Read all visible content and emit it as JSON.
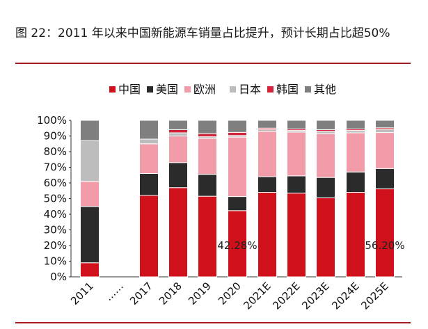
{
  "header": {
    "title": "图 22：2011 年以来中国新能源车销量占比提升，预计长期占比超50%"
  },
  "chart_data": {
    "type": "bar",
    "stacked": true,
    "categories": [
      "2011",
      "……",
      "2017",
      "2018",
      "2019",
      "2020",
      "2021E",
      "2022E",
      "2023E",
      "2024E",
      "2025E"
    ],
    "ylim": [
      0,
      100
    ],
    "yticks": [
      "0%",
      "10%",
      "20%",
      "30%",
      "40%",
      "50%",
      "60%",
      "70%",
      "80%",
      "90%",
      "100%"
    ],
    "legend_position": "top",
    "series": [
      {
        "name": "中国",
        "color": "#d0101a",
        "values": [
          9,
          null,
          52,
          57,
          51.5,
          42.3,
          54,
          53.5,
          50.5,
          54,
          56.2
        ]
      },
      {
        "name": "美国",
        "color": "#2b2b2b",
        "values": [
          36,
          null,
          14,
          16,
          14,
          9,
          10,
          11,
          13,
          13,
          13
        ]
      },
      {
        "name": "欧洲",
        "color": "#f19ca8",
        "values": [
          16,
          null,
          19,
          17,
          23,
          38,
          29,
          28,
          28,
          25,
          23
        ]
      },
      {
        "name": "日本",
        "color": "#bdbdbd",
        "values": [
          26,
          null,
          3,
          2,
          1,
          1,
          1,
          1,
          1.5,
          1.5,
          2
        ]
      },
      {
        "name": "韩国",
        "color": "#d1243a",
        "values": [
          0,
          null,
          0,
          2,
          2,
          2,
          1,
          1,
          1,
          1,
          1
        ]
      },
      {
        "name": "其他",
        "color": "#7f7f7f",
        "values": [
          13,
          null,
          12,
          6,
          8.5,
          7.7,
          5,
          5.5,
          6,
          5.5,
          4.8
        ]
      }
    ],
    "annotations": [
      {
        "category": "2020",
        "text": "42.28%"
      },
      {
        "category": "2025E",
        "text": "56.20%"
      }
    ]
  }
}
